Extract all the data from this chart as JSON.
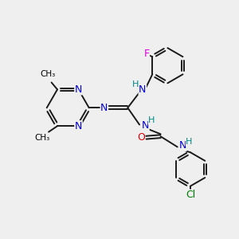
{
  "background_color": "#efefef",
  "bond_color": "#1a1a1a",
  "N_color": "#0000dd",
  "O_color": "#dd0000",
  "F_color": "#dd00dd",
  "Cl_color": "#007700",
  "H_color": "#008888",
  "figsize": [
    3.0,
    3.0
  ],
  "dpi": 100,
  "xlim": [
    0,
    10
  ],
  "ylim": [
    0,
    10
  ]
}
